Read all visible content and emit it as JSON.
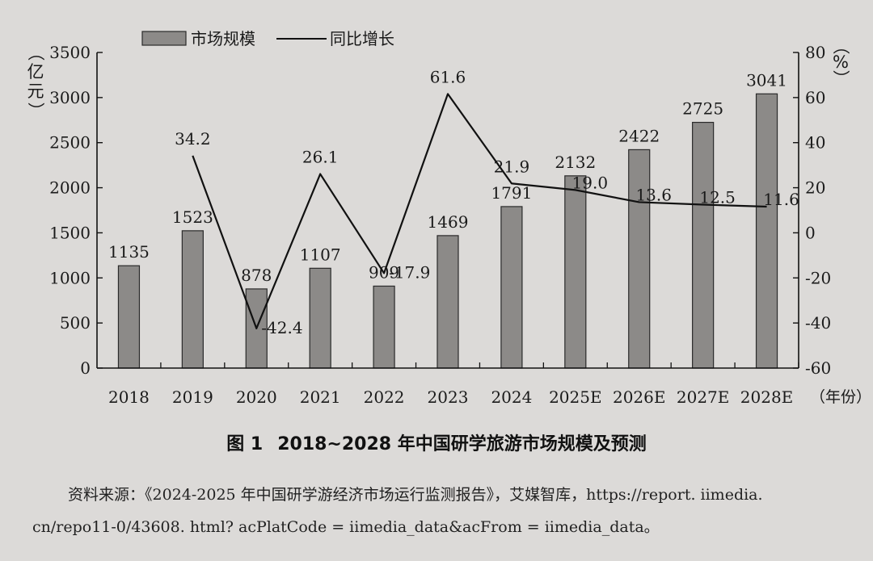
{
  "chart_data": {
    "type": "bar+line",
    "categories": [
      "2018",
      "2019",
      "2020",
      "2021",
      "2022",
      "2023",
      "2024",
      "2025E",
      "2026E",
      "2027E",
      "2028E"
    ],
    "series": [
      {
        "name": "市场规模",
        "type": "bar",
        "axis": "left",
        "values": [
          1135,
          1523,
          878,
          1107,
          909,
          1469,
          1791,
          2132,
          2422,
          2725,
          3041
        ]
      },
      {
        "name": "同比增长",
        "type": "line",
        "axis": "right",
        "values": [
          null,
          34.2,
          -42.4,
          26.1,
          -17.9,
          61.6,
          21.9,
          19.0,
          13.6,
          12.5,
          11.6
        ],
        "labels": [
          "",
          "34.2",
          "-42.4",
          "26.1",
          "-17.9",
          "61.6",
          "21.9",
          "19.0",
          "13.6",
          "12.5",
          "11.6"
        ]
      }
    ],
    "left_axis": {
      "label": "（亿元）",
      "ylim": [
        0,
        3500
      ],
      "ticks": [
        0,
        500,
        1000,
        1500,
        2000,
        2500,
        3000,
        3500
      ]
    },
    "right_axis": {
      "label": "（%）",
      "ylim": [
        -60,
        80
      ],
      "ticks": [
        -60,
        -40,
        -20,
        0,
        20,
        40,
        60,
        80
      ]
    },
    "xlabel": "（年份）",
    "legend": {
      "position": "top-left",
      "items": [
        "市场规模",
        "同比增长"
      ]
    }
  },
  "figure": {
    "number": "图 1",
    "title": "2018~2028 年中国研学旅游市场规模及预测"
  },
  "source": {
    "label": "资料来源：",
    "text": "《2024-2025 年中国研学游经济市场运行监测报告》，艾媒智库，https://report. iimedia. cn/repo11-0/43608. html? acPlatCode = iimedia_data&acFrom = iimedia_data。"
  },
  "colors": {
    "bar_fill": "#8c8a88",
    "bar_stroke": "#2a2a2a",
    "line": "#111111",
    "text": "#1a1a1a"
  }
}
